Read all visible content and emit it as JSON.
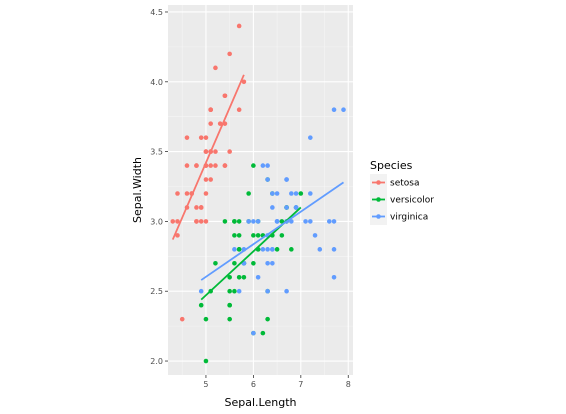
{
  "chart_data": {
    "type": "scatter",
    "xlabel": "Sepal.Length",
    "ylabel": "Sepal.Width",
    "xlim": [
      4.2,
      8.1
    ],
    "ylim": [
      1.9,
      4.55
    ],
    "x_ticks": [
      5,
      6,
      7,
      8
    ],
    "y_ticks": [
      2.0,
      2.5,
      3.0,
      3.5,
      4.0,
      4.5
    ],
    "x_tick_labels": [
      "5",
      "6",
      "7",
      "8"
    ],
    "y_tick_labels": [
      "2.0",
      "2.5",
      "3.0",
      "3.5",
      "4.0",
      "4.5"
    ],
    "grid": true,
    "legend": {
      "title": "Species",
      "position": "right",
      "entries": [
        "setosa",
        "versicolor",
        "virginica"
      ]
    },
    "series": [
      {
        "name": "setosa",
        "color": "#F8766D",
        "trend": {
          "x": [
            4.3,
            5.8
          ],
          "y": [
            2.87,
            4.05
          ]
        },
        "points": [
          [
            5.1,
            3.5
          ],
          [
            4.9,
            3.0
          ],
          [
            4.7,
            3.2
          ],
          [
            4.6,
            3.1
          ],
          [
            5.0,
            3.6
          ],
          [
            5.4,
            3.9
          ],
          [
            4.6,
            3.4
          ],
          [
            5.0,
            3.4
          ],
          [
            4.4,
            2.9
          ],
          [
            4.9,
            3.1
          ],
          [
            5.4,
            3.7
          ],
          [
            4.8,
            3.4
          ],
          [
            4.8,
            3.0
          ],
          [
            4.3,
            3.0
          ],
          [
            5.8,
            4.0
          ],
          [
            5.7,
            4.4
          ],
          [
            5.4,
            3.9
          ],
          [
            5.1,
            3.5
          ],
          [
            5.7,
            3.8
          ],
          [
            5.1,
            3.8
          ],
          [
            5.4,
            3.4
          ],
          [
            5.1,
            3.7
          ],
          [
            4.6,
            3.6
          ],
          [
            5.1,
            3.3
          ],
          [
            4.8,
            3.4
          ],
          [
            5.0,
            3.0
          ],
          [
            5.0,
            3.4
          ],
          [
            5.2,
            3.5
          ],
          [
            5.2,
            3.4
          ],
          [
            4.7,
            3.2
          ],
          [
            4.8,
            3.1
          ],
          [
            5.4,
            3.4
          ],
          [
            5.2,
            4.1
          ],
          [
            5.5,
            4.2
          ],
          [
            4.9,
            3.1
          ],
          [
            5.0,
            3.2
          ],
          [
            5.5,
            3.5
          ],
          [
            4.9,
            3.6
          ],
          [
            4.4,
            3.0
          ],
          [
            5.1,
            3.4
          ],
          [
            5.0,
            3.5
          ],
          [
            4.5,
            2.3
          ],
          [
            4.4,
            3.2
          ],
          [
            5.0,
            3.5
          ],
          [
            5.1,
            3.8
          ],
          [
            4.8,
            3.0
          ],
          [
            5.1,
            3.8
          ],
          [
            4.6,
            3.2
          ],
          [
            5.3,
            3.7
          ],
          [
            5.0,
            3.3
          ]
        ]
      },
      {
        "name": "versicolor",
        "color": "#00BA38",
        "trend": {
          "x": [
            4.9,
            7.0
          ],
          "y": [
            2.44,
            3.1
          ]
        },
        "points": [
          [
            7.0,
            3.2
          ],
          [
            6.4,
            3.2
          ],
          [
            6.9,
            3.1
          ],
          [
            5.5,
            2.3
          ],
          [
            6.5,
            2.8
          ],
          [
            5.7,
            2.8
          ],
          [
            6.3,
            3.3
          ],
          [
            4.9,
            2.4
          ],
          [
            6.6,
            2.9
          ],
          [
            5.2,
            2.7
          ],
          [
            5.0,
            2.0
          ],
          [
            5.9,
            3.0
          ],
          [
            6.0,
            2.2
          ],
          [
            6.1,
            2.9
          ],
          [
            5.6,
            2.9
          ],
          [
            6.7,
            3.1
          ],
          [
            5.6,
            3.0
          ],
          [
            5.8,
            2.7
          ],
          [
            6.2,
            2.2
          ],
          [
            5.6,
            2.5
          ],
          [
            5.9,
            3.2
          ],
          [
            6.1,
            2.8
          ],
          [
            6.3,
            2.5
          ],
          [
            6.1,
            2.8
          ],
          [
            6.4,
            2.9
          ],
          [
            6.6,
            3.0
          ],
          [
            6.8,
            2.8
          ],
          [
            6.7,
            3.0
          ],
          [
            6.0,
            2.9
          ],
          [
            5.7,
            2.6
          ],
          [
            5.5,
            2.4
          ],
          [
            5.5,
            2.4
          ],
          [
            5.8,
            2.7
          ],
          [
            6.0,
            2.7
          ],
          [
            5.4,
            3.0
          ],
          [
            6.0,
            3.4
          ],
          [
            6.7,
            3.1
          ],
          [
            6.3,
            2.3
          ],
          [
            5.6,
            3.0
          ],
          [
            5.5,
            2.5
          ],
          [
            5.5,
            2.6
          ],
          [
            6.1,
            3.0
          ],
          [
            5.8,
            2.6
          ],
          [
            5.0,
            2.3
          ],
          [
            5.6,
            2.7
          ],
          [
            5.7,
            3.0
          ],
          [
            5.7,
            2.9
          ],
          [
            6.2,
            2.9
          ],
          [
            5.1,
            2.5
          ],
          [
            5.7,
            2.8
          ]
        ]
      },
      {
        "name": "virginica",
        "color": "#619CFF",
        "trend": {
          "x": [
            4.9,
            7.9
          ],
          "y": [
            2.58,
            3.28
          ]
        },
        "points": [
          [
            6.3,
            3.3
          ],
          [
            5.8,
            2.7
          ],
          [
            7.1,
            3.0
          ],
          [
            6.3,
            2.9
          ],
          [
            6.5,
            3.0
          ],
          [
            7.6,
            3.0
          ],
          [
            4.9,
            2.5
          ],
          [
            7.3,
            2.9
          ],
          [
            6.7,
            2.5
          ],
          [
            7.2,
            3.6
          ],
          [
            6.5,
            3.2
          ],
          [
            6.4,
            2.7
          ],
          [
            6.8,
            3.0
          ],
          [
            5.7,
            2.5
          ],
          [
            5.8,
            2.8
          ],
          [
            6.4,
            3.2
          ],
          [
            6.5,
            3.0
          ],
          [
            7.7,
            3.8
          ],
          [
            7.7,
            2.6
          ],
          [
            6.0,
            2.2
          ],
          [
            6.9,
            3.2
          ],
          [
            5.6,
            2.8
          ],
          [
            7.7,
            2.8
          ],
          [
            6.3,
            2.7
          ],
          [
            6.7,
            3.3
          ],
          [
            7.2,
            3.2
          ],
          [
            6.2,
            2.8
          ],
          [
            6.1,
            3.0
          ],
          [
            6.4,
            2.8
          ],
          [
            7.2,
            3.0
          ],
          [
            7.4,
            2.8
          ],
          [
            7.9,
            3.8
          ],
          [
            6.4,
            2.8
          ],
          [
            6.3,
            2.8
          ],
          [
            6.1,
            2.6
          ],
          [
            7.7,
            3.0
          ],
          [
            6.3,
            3.4
          ],
          [
            6.4,
            3.1
          ],
          [
            6.0,
            3.0
          ],
          [
            6.9,
            3.1
          ],
          [
            6.7,
            3.1
          ],
          [
            6.9,
            3.1
          ],
          [
            5.8,
            2.7
          ],
          [
            6.8,
            3.2
          ],
          [
            6.7,
            3.3
          ],
          [
            6.7,
            3.0
          ],
          [
            6.3,
            2.5
          ],
          [
            6.5,
            3.0
          ],
          [
            6.2,
            3.4
          ],
          [
            5.9,
            3.0
          ]
        ]
      }
    ]
  }
}
